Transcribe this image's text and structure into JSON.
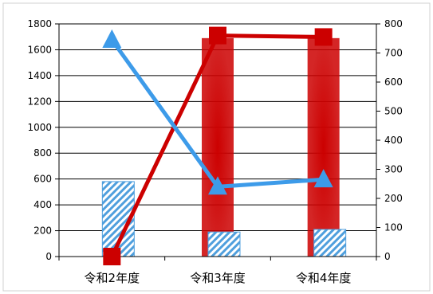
{
  "chart_data": {
    "type": "bar",
    "categories": [
      "令和2年度",
      "令和3年度",
      "令和4年度"
    ],
    "y_left": {
      "ylim": [
        0,
        1800
      ],
      "ticks": [
        "0",
        "200",
        "400",
        "600",
        "800",
        "1000",
        "1200",
        "1400",
        "1600",
        "1800"
      ]
    },
    "y_right": {
      "ylim": [
        0,
        800
      ],
      "ticks": [
        "0",
        "100",
        "200",
        "300",
        "400",
        "500",
        "600",
        "700",
        "800"
      ]
    },
    "grid": true,
    "legend": "none",
    "series": [
      {
        "kind": "bar",
        "axis": "left",
        "style": "solid",
        "color": "#cc0000",
        "values": [
          0,
          1690,
          1690
        ]
      },
      {
        "kind": "bar",
        "axis": "left",
        "style": "hatched",
        "color": "#4f9fdd",
        "values": [
          580,
          190,
          210
        ]
      },
      {
        "kind": "line",
        "axis": "right",
        "marker": "square",
        "color": "#cc0000",
        "values": [
          0,
          760,
          755
        ]
      },
      {
        "kind": "line",
        "axis": "right",
        "marker": "triangle",
        "color": "#3d9be9",
        "values": [
          745,
          240,
          265
        ]
      }
    ]
  }
}
